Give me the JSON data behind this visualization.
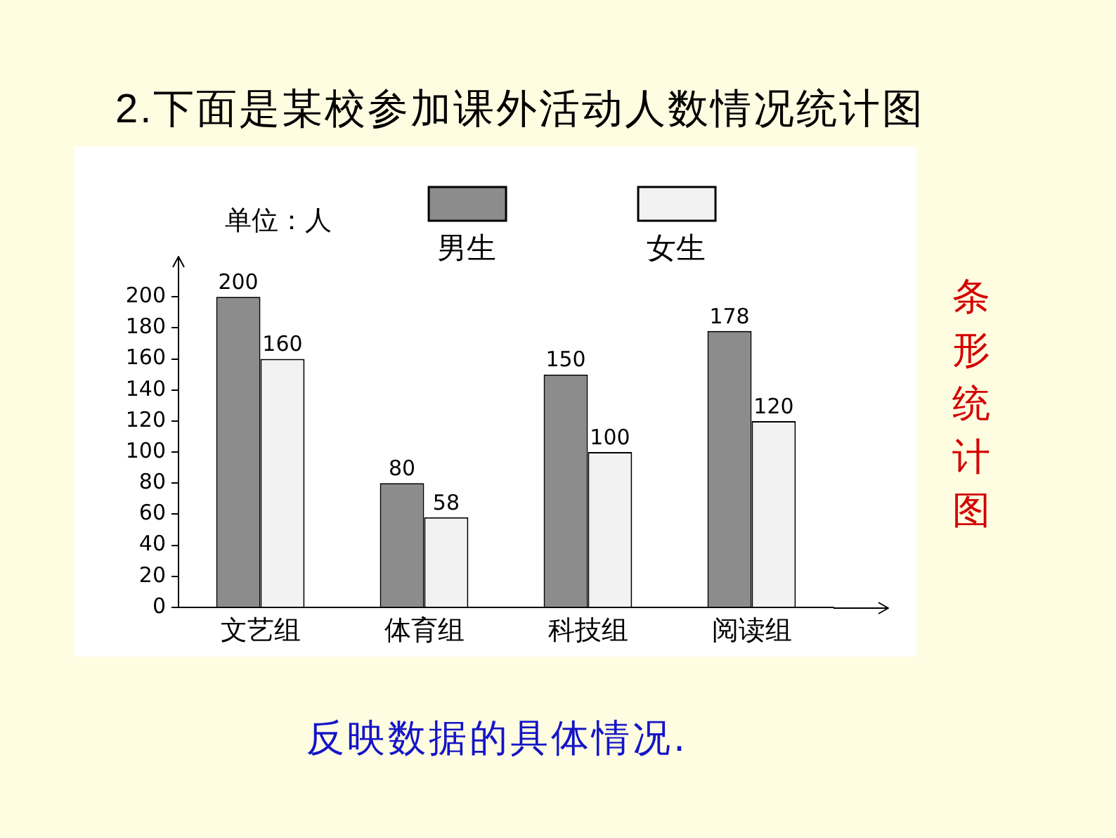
{
  "chart_data": {
    "type": "bar",
    "title": "2.下面是某校参加课外活动人数情况统计图",
    "ylabel": "单位：人",
    "annotations": [
      "条形统计图",
      "反映数据的具体情况."
    ],
    "categories": [
      "文艺组",
      "体育组",
      "科技组",
      "阅读组"
    ],
    "series": [
      {
        "name": "男生",
        "color": "#8c8c8c",
        "values": [
          200,
          80,
          150,
          178
        ]
      },
      {
        "name": "女生",
        "color": "#f2f2f2",
        "values": [
          160,
          58,
          100,
          120
        ]
      }
    ],
    "ylim": [
      0,
      220
    ],
    "yticks": [
      0,
      20,
      40,
      60,
      80,
      100,
      120,
      140,
      160,
      180,
      200
    ],
    "grid": false,
    "legend": "top",
    "data_labels": true
  }
}
